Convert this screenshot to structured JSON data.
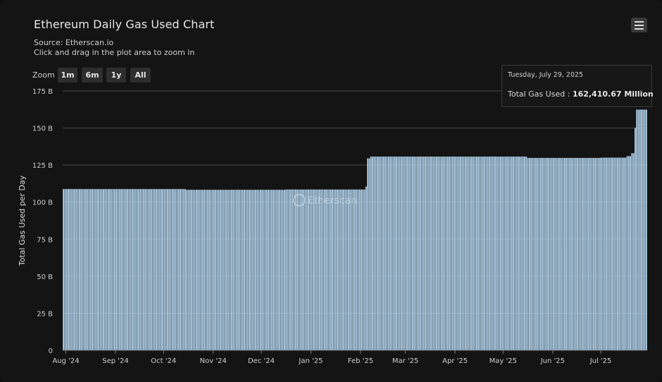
{
  "title": "Ethereum Daily Gas Used Chart",
  "subtitle_source": "Source: Etherscan.io",
  "subtitle_hint": "Click and drag in the plot area to zoom in",
  "menu_icon": "hamburger-icon",
  "zoom": {
    "label": "Zoom",
    "buttons": [
      "1m",
      "6m",
      "1y",
      "All"
    ]
  },
  "watermark": "Etherscan",
  "tooltip": {
    "date": "Tuesday, July 29, 2025",
    "label": "Total Gas Used :",
    "value": "162,410.67 Million"
  },
  "colors": {
    "bar": "#b5d6f0",
    "gridline": "#4a4a4a",
    "background": "#141414"
  },
  "chart_data": {
    "type": "bar",
    "title": "Ethereum Daily Gas Used Chart",
    "xlabel": "",
    "ylabel": "Total Gas Used per Day",
    "ylim": [
      0,
      175
    ],
    "y_unit": "B",
    "yticks": [
      0,
      25,
      50,
      75,
      100,
      125,
      150,
      175
    ],
    "ytick_labels": [
      "0",
      "25 B",
      "50 B",
      "75 B",
      "100 B",
      "125 B",
      "150 B",
      "175 B"
    ],
    "xtick_labels": [
      "Aug '24",
      "Sep '24",
      "Oct '24",
      "Nov '24",
      "Dec '24",
      "Jan '25",
      "Feb '25",
      "Mar '25",
      "Apr '25",
      "May '25",
      "Jun '25",
      "Jul '25"
    ],
    "x_range": [
      "2024-07-30",
      "2025-07-29"
    ],
    "grid": true,
    "legend": "none",
    "series": [
      {
        "segments": [
          {
            "from": "2024-07-30",
            "to": "2024-10-14",
            "value": 108.8
          },
          {
            "from": "2024-10-15",
            "to": "2024-12-15",
            "value": 108.3
          },
          {
            "from": "2024-12-16",
            "to": "2025-02-03",
            "value": 108.5
          },
          {
            "from": "2025-02-04",
            "to": "2025-02-04",
            "value": 110.5
          },
          {
            "from": "2025-02-05",
            "to": "2025-02-06",
            "value": 129.5
          },
          {
            "from": "2025-02-07",
            "to": "2025-05-15",
            "value": 130.7
          },
          {
            "from": "2025-05-16",
            "to": "2025-06-30",
            "value": 129.8
          },
          {
            "from": "2025-07-01",
            "to": "2025-07-16",
            "value": 130.0
          },
          {
            "from": "2025-07-17",
            "to": "2025-07-19",
            "value": 131.0
          },
          {
            "from": "2025-07-20",
            "to": "2025-07-21",
            "value": 133.0
          },
          {
            "from": "2025-07-22",
            "to": "2025-07-22",
            "value": 150.0
          },
          {
            "from": "2025-07-23",
            "to": "2025-07-29",
            "value": 162.4
          }
        ]
      }
    ]
  }
}
